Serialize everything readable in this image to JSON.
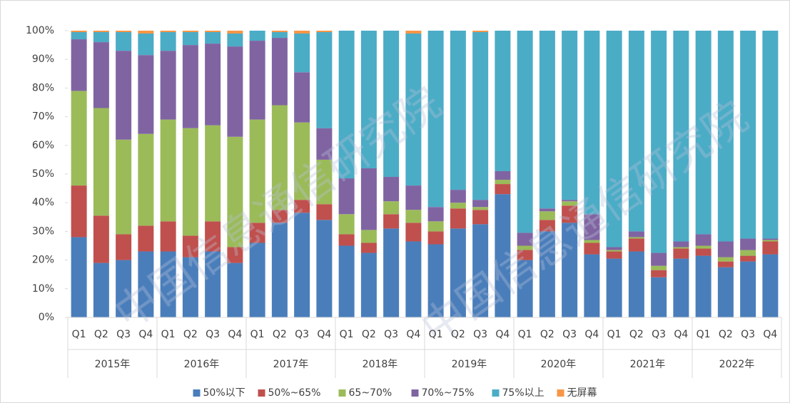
{
  "chart_data": {
    "type": "stacked_bar",
    "categories": [
      "Q1",
      "Q2",
      "Q3",
      "Q4",
      "Q1",
      "Q2",
      "Q3",
      "Q4",
      "Q1",
      "Q2",
      "Q3",
      "Q4",
      "Q1",
      "Q2",
      "Q3",
      "Q4",
      "Q1",
      "Q2",
      "Q3",
      "Q4",
      "Q1",
      "Q2",
      "Q3",
      "Q4",
      "Q1",
      "Q2",
      "Q3",
      "Q4",
      "Q1",
      "Q2",
      "Q3",
      "Q4"
    ],
    "groups": [
      "2015年",
      "2016年",
      "2017年",
      "2018年",
      "2019年",
      "2020年",
      "2021年",
      "2022年"
    ],
    "series": [
      {
        "name": "50%以下",
        "color": "#4a7ebb",
        "values": [
          28,
          19,
          20,
          23,
          23,
          21,
          23,
          19,
          26,
          33,
          36.5,
          34,
          25,
          22.5,
          31,
          26.5,
          25.5,
          31,
          32.5,
          43,
          20,
          30,
          33,
          22,
          20.5,
          23,
          14,
          20.5,
          21.5,
          17.5,
          19.5,
          22
        ]
      },
      {
        "name": "50%~65%",
        "color": "#c0504d",
        "values": [
          18,
          16.5,
          9,
          9,
          10.5,
          7.5,
          10.5,
          5.5,
          7,
          4.5,
          4.5,
          5.5,
          4,
          3.5,
          5,
          6.5,
          4.5,
          7,
          5,
          3.5,
          3.5,
          4,
          6,
          4,
          2.5,
          4.5,
          2.5,
          3.5,
          2.5,
          2,
          2,
          4.5
        ]
      },
      {
        "name": "65~70%",
        "color": "#9bbb59",
        "values": [
          33,
          37.5,
          33,
          32,
          35.5,
          37.5,
          33.5,
          38.5,
          36,
          36.5,
          27,
          15.5,
          7,
          4.5,
          4.5,
          4.5,
          3.5,
          2,
          1,
          1.5,
          1.5,
          3,
          1.5,
          1,
          0.5,
          0.5,
          1.5,
          0.5,
          1,
          1.5,
          2,
          0.5
        ]
      },
      {
        "name": "70%~75%",
        "color": "#8064a2",
        "values": [
          18,
          23,
          31,
          27.5,
          24,
          29,
          28.5,
          31.5,
          27.5,
          23.5,
          17.5,
          11,
          12.5,
          21.5,
          8.5,
          8.5,
          5,
          4.5,
          2.5,
          3,
          4.5,
          1,
          0.5,
          9,
          1,
          2,
          4.5,
          2,
          4,
          5.5,
          4,
          0.5
        ]
      },
      {
        "name": "75%以上",
        "color": "#4bacc6",
        "values": [
          2.5,
          3.5,
          6.5,
          7.5,
          6.5,
          4.5,
          4,
          4.5,
          3.5,
          2,
          13.5,
          33.5,
          51.5,
          48,
          51,
          53,
          61.5,
          55.5,
          58.5,
          49,
          70.5,
          62,
          59,
          64,
          75.5,
          70,
          77.5,
          73.5,
          71,
          73.5,
          72.5,
          72.5
        ]
      },
      {
        "name": "无屏幕",
        "color": "#f79646",
        "values": [
          0.5,
          0.5,
          0.5,
          1,
          0.5,
          0.5,
          0.5,
          1,
          0,
          0.5,
          1,
          0.5,
          0,
          0,
          0,
          1,
          0,
          0,
          0.5,
          0,
          0,
          0,
          0,
          0,
          0,
          0,
          0,
          0,
          0,
          0,
          0,
          0
        ]
      }
    ],
    "ylim": [
      0,
      100
    ],
    "yticks": [
      {
        "value": 0,
        "label": "0%"
      },
      {
        "value": 10,
        "label": "10%"
      },
      {
        "value": 20,
        "label": "20%"
      },
      {
        "value": 30,
        "label": "30%"
      },
      {
        "value": 40,
        "label": "40%"
      },
      {
        "value": 50,
        "label": "50%"
      },
      {
        "value": 60,
        "label": "60%"
      },
      {
        "value": 70,
        "label": "70%"
      },
      {
        "value": 80,
        "label": "80%"
      },
      {
        "value": 90,
        "label": "90%"
      },
      {
        "value": 100,
        "label": "100%"
      }
    ],
    "legend": "bottom",
    "watermark": "中国信息通信研究院"
  }
}
